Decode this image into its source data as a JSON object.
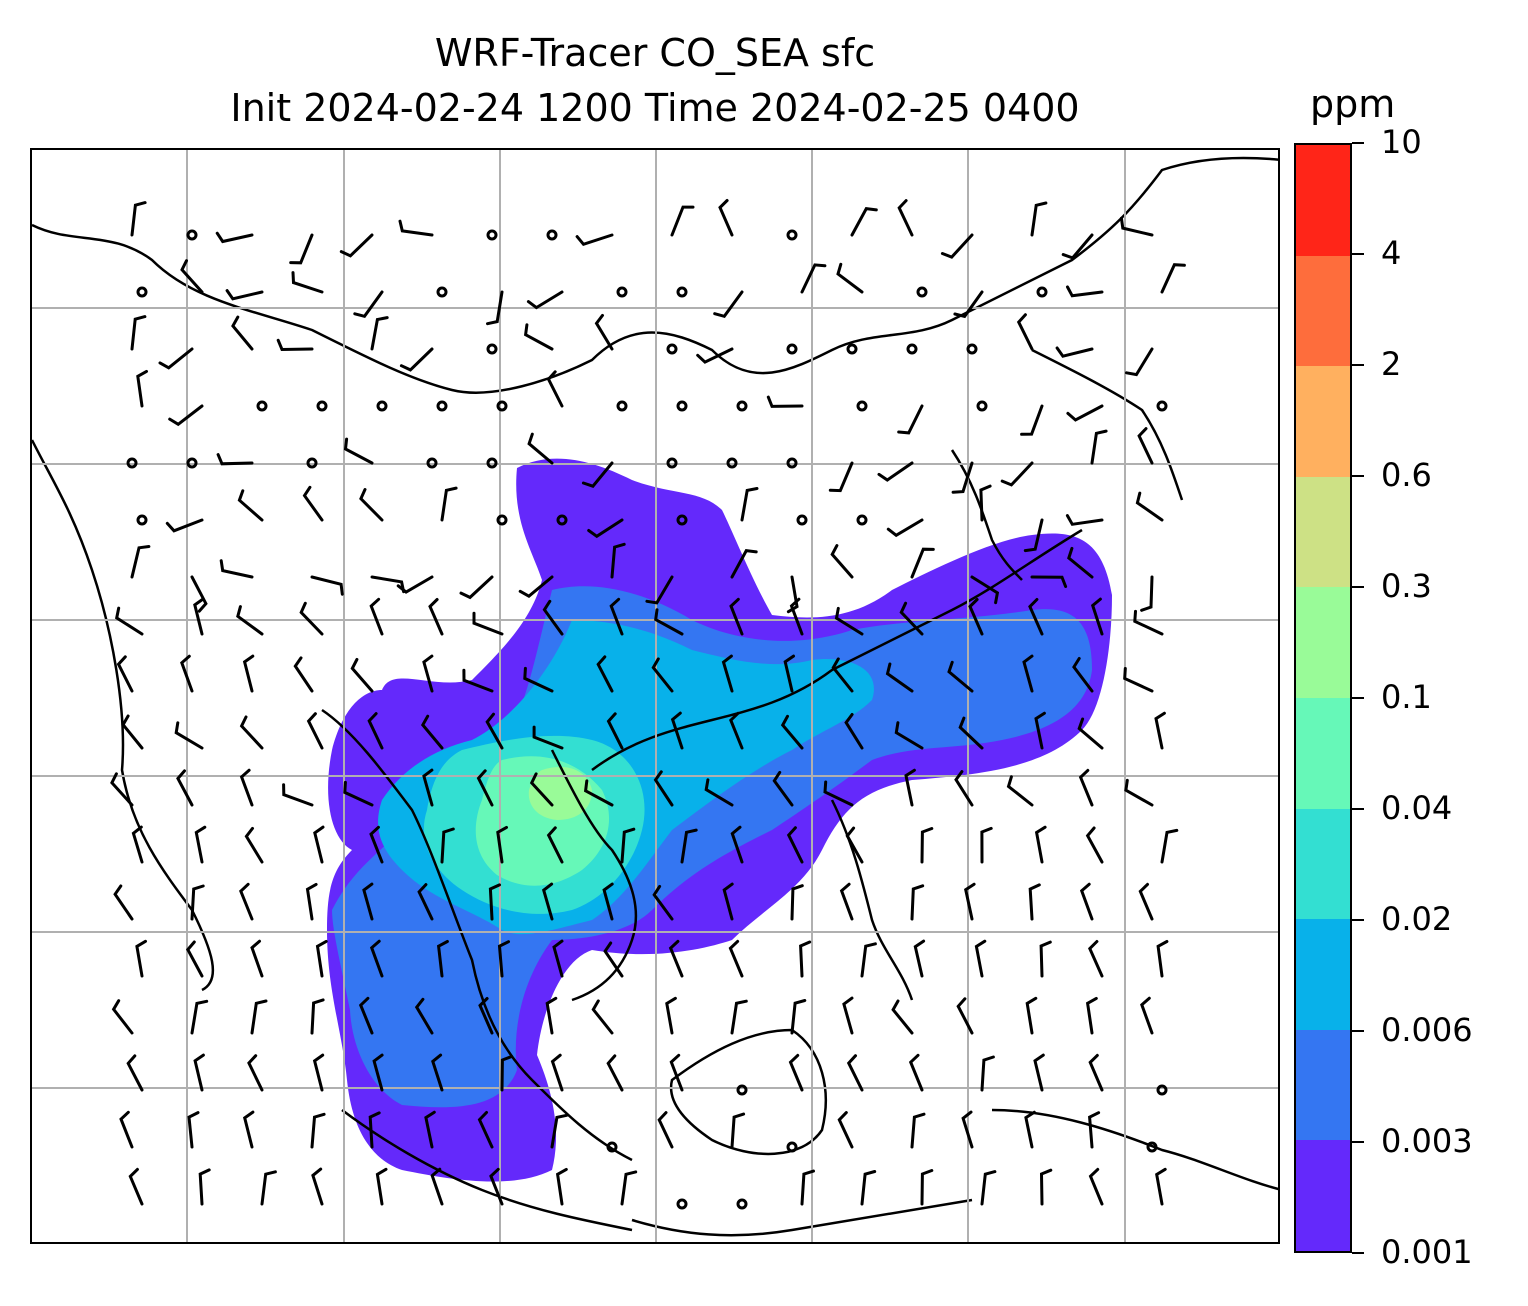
{
  "title": {
    "line1": "WRF-Tracer CO_SEA sfc",
    "line2": "Init 2024-02-24 1200 Time 2024-02-25 0400"
  },
  "map": {
    "field": "CO_SEA tracer concentration (surface)",
    "wind_barbs": "shown",
    "coastlines": "shown",
    "gridlines": "shown"
  },
  "colorbar": {
    "unit": "ppm",
    "levels": [
      "0.001",
      "0.003",
      "0.006",
      "0.02",
      "0.04",
      "0.1",
      "0.3",
      "0.6",
      "2",
      "4",
      "10"
    ],
    "colors": [
      "#6429fb",
      "#3476f2",
      "#08b1ea",
      "#33dfd2",
      "#66f8b8",
      "#99fb98",
      "#cde185",
      "#ffb05f",
      "#fe6d3c",
      "#ff2518"
    ]
  }
}
